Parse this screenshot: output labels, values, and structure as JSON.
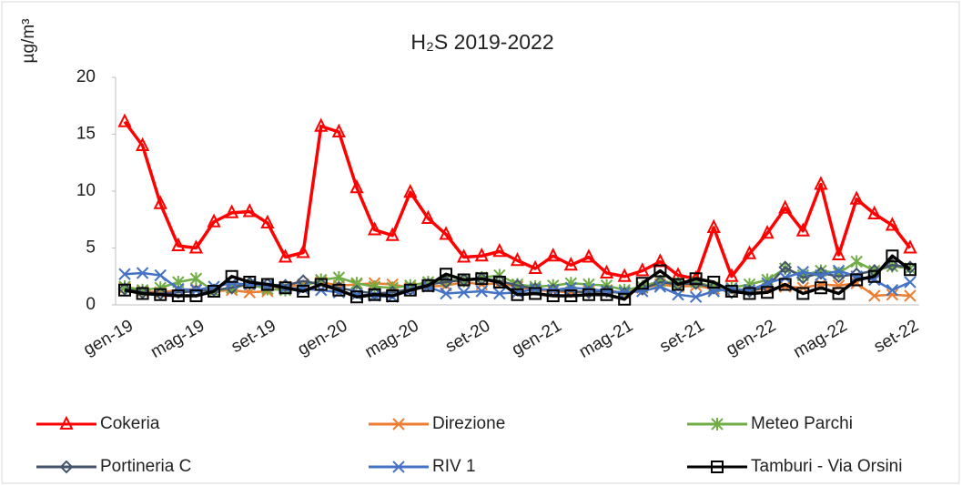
{
  "chart_data": {
    "type": "line",
    "title": "H₂S 2019-2022",
    "y_label": "µg/m³",
    "categories": [
      "gen-19",
      null,
      null,
      null,
      "mag-19",
      null,
      null,
      null,
      "set-19",
      null,
      null,
      null,
      "gen-20",
      null,
      null,
      null,
      "mag-20",
      null,
      null,
      null,
      "set-20",
      null,
      null,
      null,
      "gen-21",
      null,
      null,
      null,
      "mag-21",
      null,
      null,
      null,
      "set-21",
      null,
      null,
      null,
      "gen-22",
      null,
      null,
      null,
      "mag-22",
      null,
      null,
      null,
      "set-22"
    ],
    "ylim": [
      0,
      20
    ],
    "yticks": [
      0,
      5,
      10,
      15,
      20
    ],
    "grid": false,
    "legend": "bottom",
    "series": [
      {
        "name": "Cokeria",
        "color": "#ff0000",
        "marker": "triangle",
        "values": [
          16.1,
          14,
          8.9,
          5.2,
          5,
          7.3,
          8.1,
          8.2,
          7.2,
          4.2,
          4.6,
          15.7,
          15.2,
          10.3,
          6.6,
          6.1,
          9.9,
          7.6,
          6.2,
          4.2,
          4.3,
          4.7,
          3.9,
          3.2,
          4.3,
          3.5,
          4.2,
          2.8,
          2.5,
          3,
          3.8,
          2.6,
          2.3,
          6.8,
          2.5,
          4.5,
          6.3,
          8.5,
          6.5,
          10.6,
          4.4,
          9.3,
          8,
          7,
          5
        ]
      },
      {
        "name": "Direzione",
        "color": "#ed7d31",
        "marker": "x",
        "values": [
          1.5,
          1.2,
          1.1,
          1.3,
          1.4,
          1.2,
          1.3,
          1.1,
          1.2,
          1.6,
          1.8,
          2.0,
          1.7,
          1.8,
          1.9,
          1.8,
          1.5,
          1.6,
          1.7,
          2.0,
          1.8,
          1.9,
          1.6,
          1.3,
          1.2,
          1.1,
          1.2,
          1.3,
          1.0,
          1.5,
          1.8,
          1.6,
          1.7,
          1.4,
          1.2,
          1.3,
          1.4,
          1.6,
          1.5,
          1.8,
          1.7,
          1.9,
          0.8,
          0.9,
          0.8
        ]
      },
      {
        "name": "Meteo Parchi",
        "color": "#70ad47",
        "marker": "asterisk",
        "values": [
          1.6,
          1.3,
          1.5,
          2.0,
          2.3,
          1.2,
          1.5,
          1.8,
          1.4,
          1.3,
          1.6,
          2.2,
          2.4,
          1.9,
          1.6,
          1.5,
          1.7,
          2.0,
          2.2,
          2.1,
          2.4,
          2.6,
          1.8,
          1.6,
          1.7,
          1.9,
          1.8,
          1.7,
          1.3,
          1.6,
          2.1,
          1.9,
          2.0,
          1.6,
          1.5,
          1.8,
          2.2,
          3.2,
          2.6,
          3.0,
          2.8,
          3.8,
          3.0,
          3.4,
          3.2
        ]
      },
      {
        "name": "Portineria C",
        "color": "#44546a",
        "marker": "diamond",
        "values": [
          1.4,
          1.1,
          1.0,
          1.1,
          1.2,
          1.3,
          1.5,
          1.9,
          1.8,
          1.7,
          2.1,
          1.8,
          1.5,
          1.2,
          1.0,
          1.1,
          1.4,
          1.8,
          2.0,
          2.2,
          2.3,
          2.1,
          1.7,
          1.4,
          1.3,
          1.2,
          1.1,
          1.2,
          1.0,
          1.4,
          2.0,
          1.8,
          1.9,
          1.5,
          1.1,
          1.2,
          1.6,
          3.3,
          2.4,
          2.8,
          2.5,
          2.7,
          3.0,
          3.5,
          3.3
        ]
      },
      {
        "name": "RIV 1",
        "color": "#4472c4",
        "marker": "x",
        "values": [
          2.7,
          2.8,
          2.6,
          1.4,
          1.3,
          1.6,
          1.9,
          1.8,
          1.7,
          1.5,
          1.4,
          1.3,
          1.1,
          0.9,
          0.8,
          0.7,
          1.3,
          1.6,
          1.0,
          1.1,
          1.2,
          1.0,
          1.1,
          1.4,
          1.3,
          1.5,
          1.4,
          1.2,
          1.1,
          1.2,
          1.6,
          0.9,
          0.7,
          1.2,
          1.4,
          1.3,
          1.9,
          2.4,
          2.9,
          2.6,
          3.0,
          2.5,
          2.2,
          1.3,
          2.0
        ]
      },
      {
        "name": "Tamburi - Via Orsini",
        "color": "#000000",
        "marker": "square",
        "values": [
          1.3,
          1.0,
          0.9,
          0.8,
          0.8,
          1.2,
          2.5,
          2.0,
          1.8,
          1.5,
          1.2,
          1.8,
          1.3,
          0.7,
          0.9,
          0.8,
          1.3,
          1.7,
          2.7,
          2.2,
          2.3,
          2.0,
          0.9,
          1.0,
          0.8,
          0.8,
          0.9,
          0.9,
          0.5,
          1.9,
          3.0,
          1.8,
          2.3,
          2.0,
          1.2,
          1.0,
          1.1,
          1.8,
          1.0,
          1.5,
          1.0,
          2.2,
          2.5,
          4.3,
          3.1
        ]
      }
    ]
  }
}
